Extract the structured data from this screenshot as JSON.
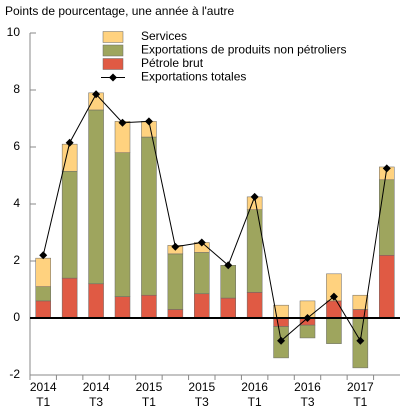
{
  "chart_data": {
    "type": "bar",
    "stacked": true,
    "title": "Points de pourcentage, une année à l'autre",
    "categories": [
      [
        "2014",
        "T1"
      ],
      null,
      [
        "2014",
        "T3"
      ],
      null,
      [
        "2015",
        "T1"
      ],
      null,
      [
        "2015",
        "T3"
      ],
      null,
      [
        "2016",
        "T1"
      ],
      null,
      [
        "2016",
        "T3"
      ],
      null,
      [
        "2017",
        "T1"
      ],
      null
    ],
    "series": [
      {
        "name": "Services",
        "color": "#ffd27f",
        "values": [
          1.0,
          0.95,
          0.6,
          1.1,
          0.55,
          0.3,
          0.35,
          0,
          0.45,
          0.45,
          0.6,
          0.95,
          0.5,
          0.45
        ]
      },
      {
        "name": "Exportations de produits non pétroliers",
        "color": "#9ea55e",
        "values": [
          0.5,
          3.75,
          6.1,
          5.05,
          5.55,
          1.95,
          1.45,
          1.15,
          2.9,
          -1.1,
          -0.45,
          -0.9,
          -1.75,
          2.65
        ]
      },
      {
        "name": "Pétrole brut",
        "color": "#e05a44",
        "values": [
          0.6,
          1.4,
          1.2,
          0.75,
          0.8,
          0.3,
          0.85,
          0.7,
          0.9,
          -0.3,
          -0.25,
          0.6,
          0.3,
          2.2
        ]
      },
      {
        "name": "Exportations totales",
        "color": "#000000",
        "type": "line",
        "values": [
          2.2,
          6.15,
          7.85,
          6.85,
          6.9,
          2.5,
          2.65,
          1.85,
          4.25,
          -0.8,
          0.0,
          0.75,
          -0.8,
          5.25
        ]
      }
    ],
    "ylim": [
      -2,
      10
    ],
    "yticks": [
      -2,
      0,
      2,
      4,
      6,
      8,
      10
    ],
    "grid": false
  }
}
